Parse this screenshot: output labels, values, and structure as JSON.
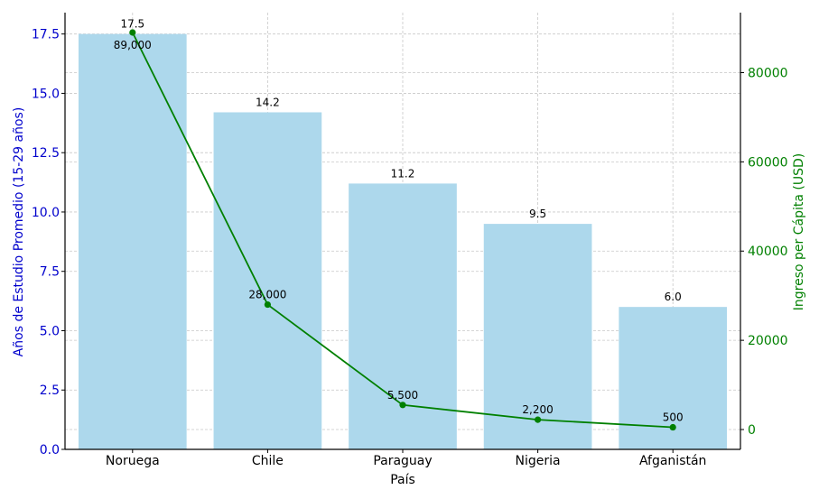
{
  "colors": {
    "bar": "#add8ec",
    "line": "#008000",
    "left_axis": "#0000cc",
    "right_axis": "#008000"
  },
  "chart_data": {
    "type": "bar",
    "categories": [
      "Noruega",
      "Chile",
      "Paraguay",
      "Nigeria",
      "Afganistán"
    ],
    "xlabel": "País",
    "grid": true,
    "series": [
      {
        "name": "Años de Estudio Promedio (15-29 años)",
        "type": "bar",
        "axis": "left",
        "values": [
          17.5,
          14.2,
          11.2,
          9.5,
          6.0
        ],
        "labels": [
          "17.5",
          "14.2",
          "11.2",
          "9.5",
          "6.0"
        ]
      },
      {
        "name": "Ingreso per Cápita (USD)",
        "type": "line",
        "axis": "right",
        "values": [
          89000,
          28000,
          5500,
          2200,
          500
        ],
        "labels": [
          "89,000",
          "28,000",
          "5,500",
          "2,200",
          "500"
        ]
      }
    ],
    "y_left": {
      "label": "Años de Estudio Promedio (15-29 años)",
      "lim": [
        0,
        18.4
      ],
      "ticks": [
        0,
        2.5,
        5,
        7.5,
        10,
        12.5,
        15,
        17.5
      ],
      "tick_labels": [
        "0.0",
        "2.5",
        "5.0",
        "7.5",
        "10.0",
        "12.5",
        "15.0",
        "17.5"
      ]
    },
    "y_right": {
      "label": "Ingreso per Cápita (USD)",
      "lim": [
        -4450,
        93450
      ],
      "ticks": [
        0,
        20000,
        40000,
        60000,
        80000
      ],
      "tick_labels": [
        "0",
        "20000",
        "40000",
        "60000",
        "80000"
      ]
    }
  }
}
